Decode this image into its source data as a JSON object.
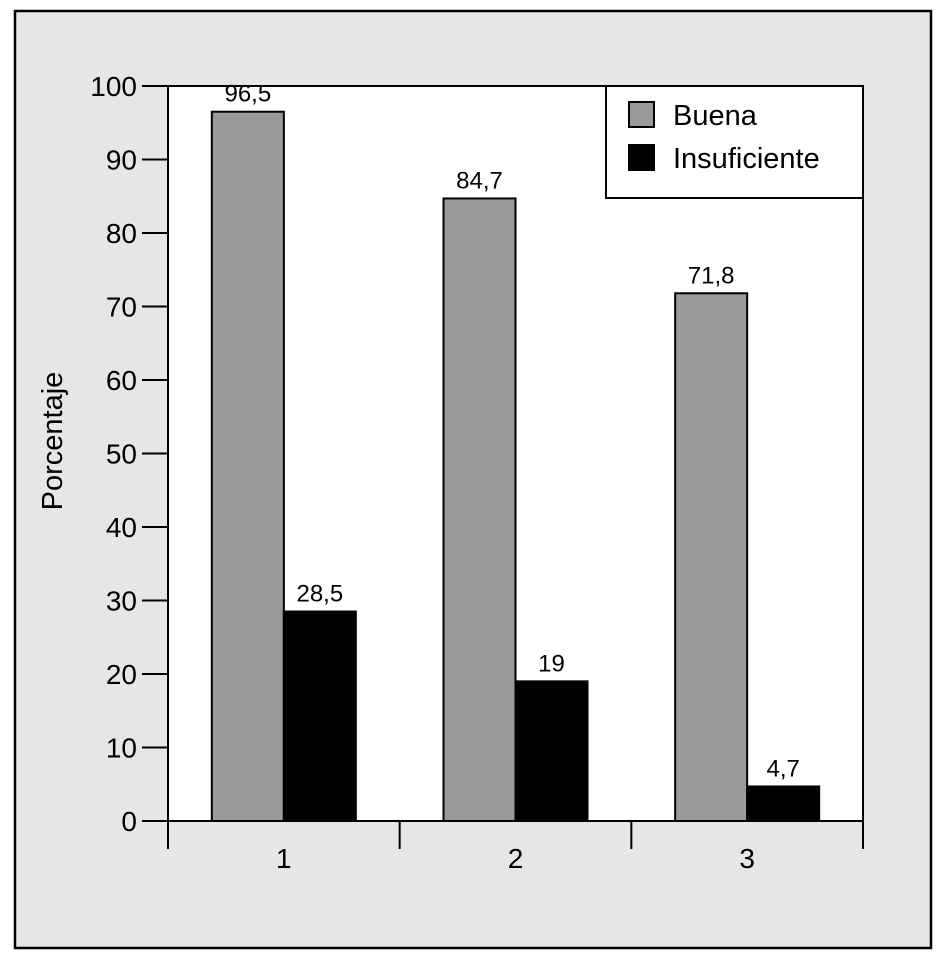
{
  "chart_data": {
    "type": "bar",
    "categories": [
      "1",
      "2",
      "3"
    ],
    "series": [
      {
        "name": "Buena",
        "values": [
          96.5,
          84.7,
          71.8
        ],
        "labels": [
          "96,5",
          "84,7",
          "71,8"
        ],
        "color": "#9a9a9a"
      },
      {
        "name": "Insuficiente",
        "values": [
          28.5,
          19,
          4.7
        ],
        "labels": [
          "28,5",
          "19",
          "4,7"
        ],
        "color": "#000000"
      }
    ],
    "ylabel": "Porcentaje",
    "xlabel": "",
    "ylim": [
      0,
      100
    ],
    "yticks": [
      "0",
      "10",
      "20",
      "30",
      "40",
      "50",
      "60",
      "70",
      "80",
      "90",
      "100"
    ],
    "grid": false,
    "legend_position": "top-right",
    "background_color": "#e6e6e6",
    "plot_background_color": "#ffffff"
  }
}
